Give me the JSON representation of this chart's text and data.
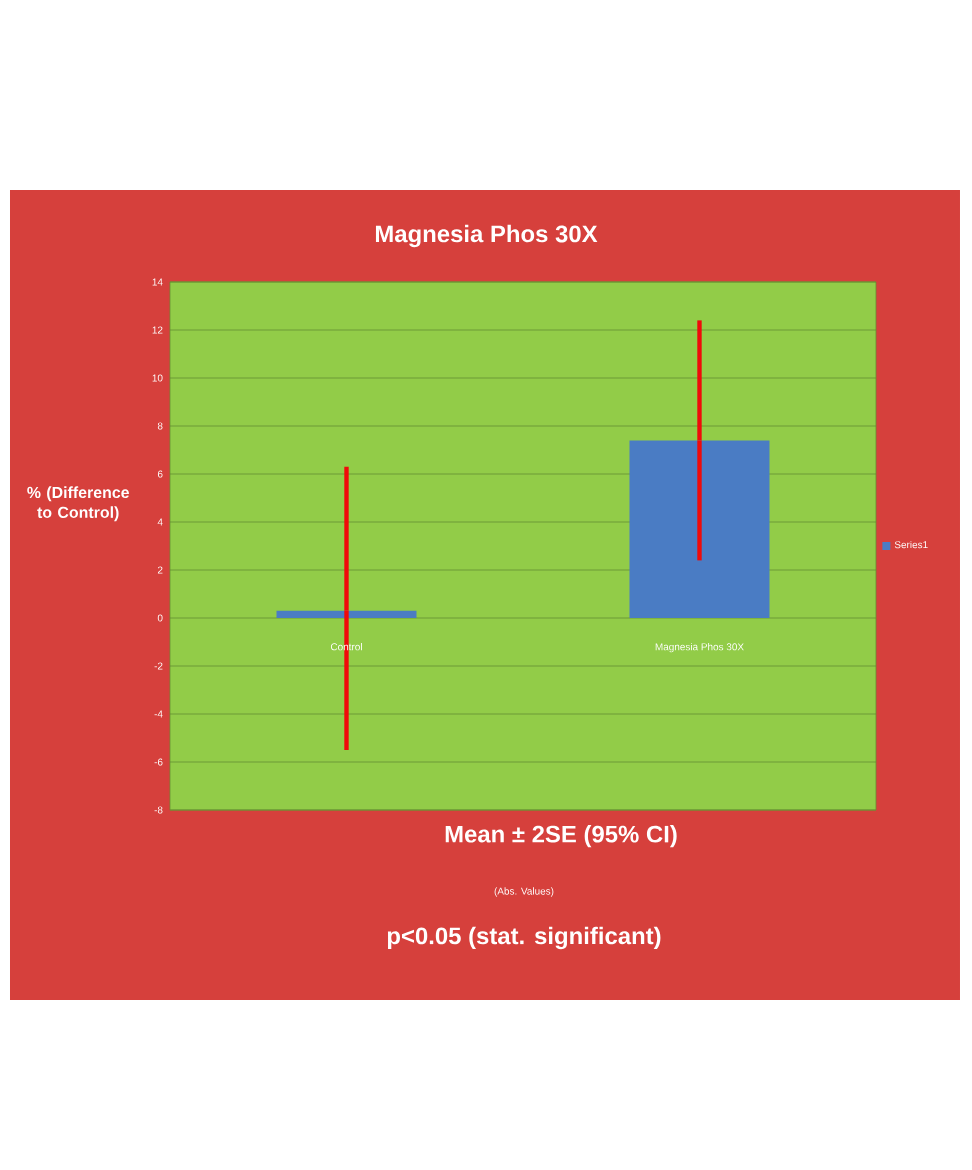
{
  "chart_data": {
    "type": "bar",
    "title": "Magnesia Phos 30X",
    "xlabel": "Mean ± 2SE  (95% CI)",
    "ylabel": "% (Difference to Control)",
    "categories": [
      "Control",
      "Magnesia Phos 30X"
    ],
    "series": [
      {
        "name": "Series1",
        "color": "#4a7cc4",
        "values": [
          0.3,
          7.4
        ],
        "errors": [
          [
            -5.5,
            6.3
          ],
          [
            2.4,
            12.4
          ]
        ]
      }
    ],
    "ylim": [
      -8,
      14
    ],
    "yticks": [
      -8,
      -6,
      -4,
      -2,
      0,
      2,
      4,
      6,
      8,
      10,
      12,
      14
    ],
    "grid": "y",
    "legend": "right",
    "annotations": [
      "(Abs. Values)",
      "p<0.05 (stat. significant)"
    ]
  }
}
